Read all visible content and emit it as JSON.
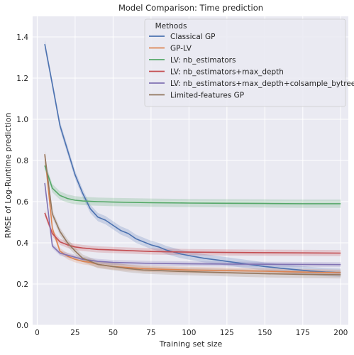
{
  "chart_data": {
    "type": "line",
    "title": "Model Comparison: Time prediction",
    "xlabel": "Training set size",
    "ylabel": "RMSE of Log-Runtime prediction",
    "xlim": [
      -3,
      205
    ],
    "ylim": [
      0,
      1.5
    ],
    "xticks": [
      0,
      25,
      50,
      75,
      100,
      125,
      150,
      175,
      200
    ],
    "yticks": [
      0.0,
      0.2,
      0.4,
      0.6,
      0.8,
      1.0,
      1.2,
      1.4
    ],
    "grid": true,
    "background": "#eaeaf2",
    "legend": {
      "title": "Methods",
      "placement": "top-right"
    },
    "series": [
      {
        "name": "Classical GP",
        "color": "#4c72b0",
        "x": [
          5,
          10,
          15,
          20,
          25,
          30,
          35,
          40,
          45,
          50,
          55,
          60,
          65,
          70,
          75,
          80,
          85,
          90,
          95,
          100,
          110,
          120,
          130,
          140,
          150,
          160,
          170,
          180,
          190,
          200
        ],
        "y": [
          1.365,
          1.17,
          0.97,
          0.85,
          0.73,
          0.64,
          0.565,
          0.525,
          0.51,
          0.485,
          0.46,
          0.445,
          0.42,
          0.405,
          0.39,
          0.38,
          0.365,
          0.355,
          0.345,
          0.338,
          0.325,
          0.315,
          0.305,
          0.295,
          0.285,
          0.277,
          0.27,
          0.263,
          0.258,
          0.255
        ],
        "band": 0.02
      },
      {
        "name": "GP-LV",
        "color": "#dd8452",
        "x": [
          5,
          10,
          15,
          20,
          25,
          30,
          35,
          40,
          45,
          50,
          60,
          70,
          80,
          90,
          100,
          125,
          150,
          175,
          200
        ],
        "y": [
          0.83,
          0.47,
          0.36,
          0.335,
          0.32,
          0.31,
          0.305,
          0.295,
          0.29,
          0.285,
          0.28,
          0.275,
          0.272,
          0.27,
          0.268,
          0.265,
          0.262,
          0.258,
          0.255
        ],
        "band": 0.015
      },
      {
        "name": "LV: nb_estimators",
        "color": "#55a868",
        "x": [
          5,
          10,
          15,
          20,
          25,
          30,
          40,
          50,
          75,
          100,
          125,
          150,
          175,
          200
        ],
        "y": [
          0.775,
          0.665,
          0.63,
          0.615,
          0.607,
          0.603,
          0.6,
          0.598,
          0.595,
          0.593,
          0.592,
          0.591,
          0.59,
          0.59
        ],
        "band": 0.02
      },
      {
        "name": "LV: nb_estimators+max_depth",
        "color": "#c44e52",
        "x": [
          5,
          10,
          15,
          20,
          25,
          30,
          40,
          50,
          75,
          100,
          125,
          150,
          175,
          200
        ],
        "y": [
          0.545,
          0.445,
          0.405,
          0.39,
          0.38,
          0.375,
          0.368,
          0.365,
          0.358,
          0.355,
          0.353,
          0.352,
          0.351,
          0.35
        ],
        "band": 0.015
      },
      {
        "name": "LV: nb_estimators+max_depth+colsample_bytree",
        "color": "#8172b3",
        "x": [
          5,
          10,
          15,
          20,
          25,
          30,
          40,
          50,
          75,
          100,
          125,
          150,
          175,
          200
        ],
        "y": [
          0.69,
          0.385,
          0.35,
          0.34,
          0.33,
          0.32,
          0.31,
          0.305,
          0.3,
          0.298,
          0.297,
          0.296,
          0.295,
          0.294
        ],
        "band": 0.012
      },
      {
        "name": "Limited-features GP",
        "color": "#937860",
        "x": [
          5,
          10,
          15,
          20,
          25,
          30,
          35,
          40,
          45,
          50,
          60,
          70,
          80,
          90,
          100,
          125,
          150,
          175,
          200
        ],
        "y": [
          0.83,
          0.54,
          0.455,
          0.4,
          0.36,
          0.325,
          0.31,
          0.295,
          0.29,
          0.285,
          0.275,
          0.268,
          0.265,
          0.262,
          0.26,
          0.255,
          0.25,
          0.247,
          0.245
        ],
        "band": 0.018
      }
    ]
  }
}
